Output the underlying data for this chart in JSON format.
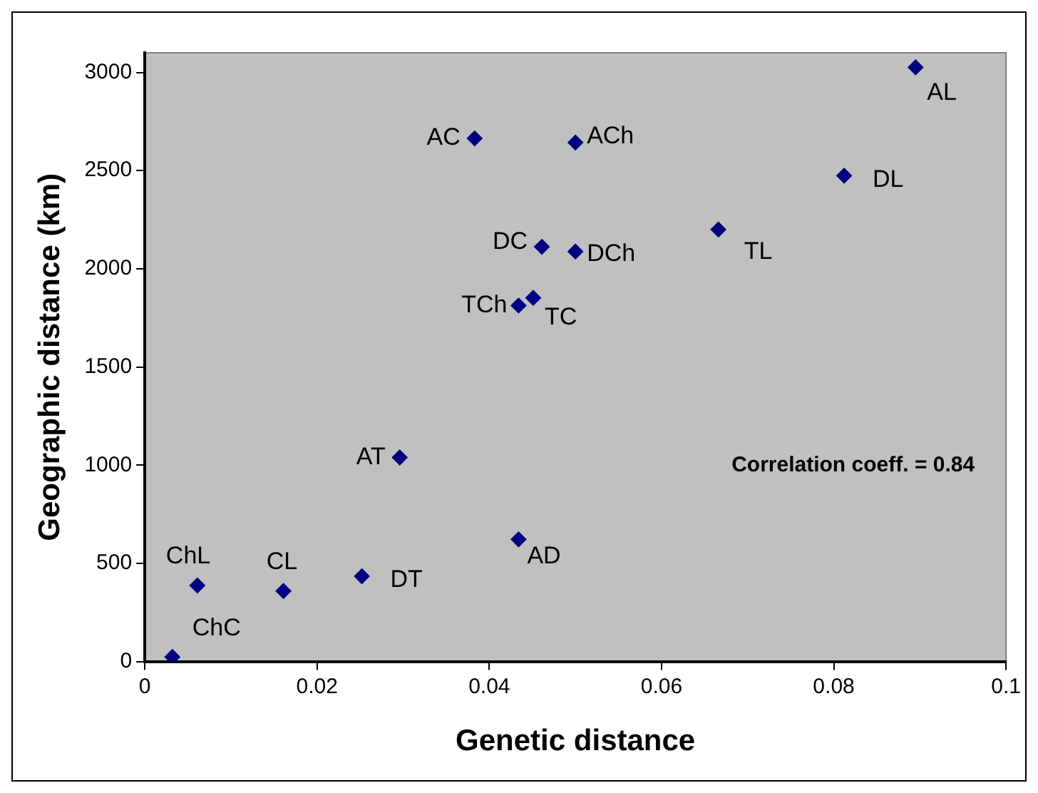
{
  "chart_data": {
    "type": "scatter",
    "xlabel": "Genetic distance",
    "ylabel": "Geographic distance (km)",
    "x": [
      0.0032,
      0.0061,
      0.0161,
      0.0252,
      0.0296,
      0.0434,
      0.0434,
      0.0451,
      0.0461,
      0.0383,
      0.05,
      0.05,
      0.0666,
      0.0812,
      0.0895
    ],
    "series": [
      {
        "color": "#000080",
        "values": [
          23,
          387,
          359,
          434,
          1039,
          622,
          1813,
          1852,
          2112,
          2664,
          2643,
          2088,
          2200,
          2474,
          3026
        ]
      }
    ],
    "xlim": [
      0,
      0.1
    ],
    "xticks": [
      0,
      0.02,
      0.04,
      0.06,
      0.08,
      0.1
    ],
    "ylim": [
      0,
      3100
    ],
    "yticks": [
      0,
      500,
      1000,
      1500,
      2000,
      2500,
      3000
    ],
    "marker": "diamond",
    "grid": false,
    "legend": false,
    "annotations": [
      {
        "text": "ChC",
        "x": 0.0032,
        "y": 23
      },
      {
        "text": "ChL",
        "x": 0.0061,
        "y": 387
      },
      {
        "text": "CL",
        "x": 0.0161,
        "y": 359
      },
      {
        "text": "DT",
        "x": 0.0252,
        "y": 434
      },
      {
        "text": "AT",
        "x": 0.0296,
        "y": 1039
      },
      {
        "text": "AD",
        "x": 0.0434,
        "y": 622
      },
      {
        "text": "TCh",
        "x": 0.0434,
        "y": 1813
      },
      {
        "text": "TC",
        "x": 0.0451,
        "y": 1852
      },
      {
        "text": "DC",
        "x": 0.0461,
        "y": 2112
      },
      {
        "text": "AC",
        "x": 0.0383,
        "y": 2664
      },
      {
        "text": "ACh",
        "x": 0.05,
        "y": 2643
      },
      {
        "text": "DCh",
        "x": 0.05,
        "y": 2088
      },
      {
        "text": "TL",
        "x": 0.0666,
        "y": 2200
      },
      {
        "text": "DL",
        "x": 0.0812,
        "y": 2474
      },
      {
        "text": "AL",
        "x": 0.0895,
        "y": 3026
      },
      "Correlation coeff. = 0.84"
    ]
  }
}
